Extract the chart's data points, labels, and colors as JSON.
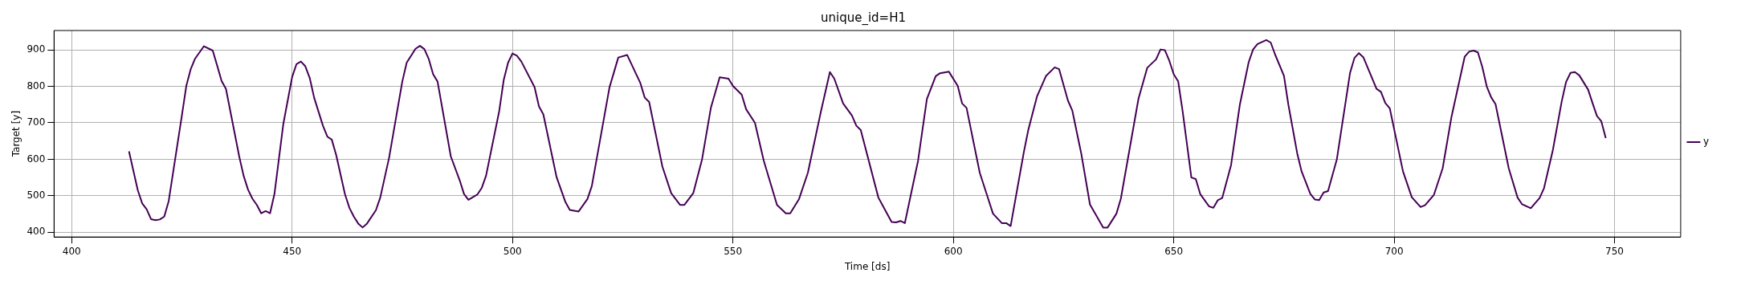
{
  "chart_data": {
    "type": "line",
    "title": "unique_id=H1",
    "xlabel": "Time [ds]",
    "ylabel": "Target [y]",
    "xlim": [
      396,
      765
    ],
    "xticks": [
      400,
      450,
      500,
      550,
      600,
      650,
      700,
      750
    ],
    "ylim": [
      387,
      953
    ],
    "yticks": [
      400,
      500,
      600,
      700,
      800,
      900
    ],
    "grid": true,
    "legend": "right",
    "marker": "none",
    "line_style": "solid",
    "series": [
      {
        "name": "y",
        "color": "#440154",
        "x": [
          413,
          415,
          416,
          417,
          418,
          419,
          420,
          421,
          422,
          425,
          426,
          427,
          428,
          430,
          432,
          433,
          434,
          435,
          438,
          439,
          440,
          441,
          442,
          443,
          444,
          445,
          446,
          448,
          450,
          451,
          452,
          453,
          454,
          455,
          457,
          458,
          459,
          460,
          462,
          463,
          464,
          465,
          466,
          467,
          469,
          470,
          472,
          475,
          476,
          478,
          479,
          480,
          481,
          482,
          483,
          486,
          488,
          489,
          490,
          492,
          493,
          494,
          497,
          498,
          499,
          500,
          501,
          502,
          505,
          506,
          507,
          510,
          511,
          512,
          513,
          515,
          517,
          518,
          522,
          524,
          526,
          529,
          530,
          531,
          534,
          536,
          538,
          539,
          541,
          543,
          545,
          547,
          549,
          550,
          552,
          553,
          555,
          557,
          560,
          562,
          563,
          565,
          567,
          570,
          572,
          573,
          575,
          577,
          578,
          579,
          583,
          586,
          587,
          588,
          589,
          592,
          594,
          596,
          597,
          599,
          601,
          602,
          603,
          606,
          609,
          611,
          612,
          613,
          616,
          617,
          619,
          621,
          623,
          624,
          626,
          627,
          629,
          631,
          634,
          635,
          637,
          638,
          642,
          644,
          646,
          647,
          648,
          649,
          650,
          651,
          652,
          654,
          655,
          656,
          658,
          659,
          660,
          661,
          663,
          665,
          667,
          668,
          669,
          671,
          672,
          673,
          675,
          676,
          678,
          679,
          681,
          682,
          683,
          684,
          685,
          687,
          690,
          691,
          692,
          693,
          696,
          697,
          698,
          699,
          702,
          704,
          706,
          707,
          709,
          711,
          713,
          716,
          717,
          718,
          719,
          720,
          721,
          722,
          723,
          726,
          728,
          729,
          731,
          733,
          734,
          736,
          738,
          739,
          740,
          741,
          742,
          744,
          745,
          746,
          747,
          748
        ],
        "values": [
          622,
          515,
          479,
          463,
          436,
          433,
          435,
          443,
          485,
          720,
          801,
          847,
          876,
          910,
          898,
          857,
          815,
          793,
          608,
          555,
          517,
          492,
          475,
          452,
          458,
          452,
          505,
          696,
          825,
          861,
          868,
          855,
          823,
          769,
          692,
          662,
          654,
          612,
          504,
          467,
          443,
          424,
          413,
          424,
          460,
          495,
          604,
          813,
          865,
          903,
          911,
          902,
          875,
          833,
          813,
          608,
          543,
          505,
          489,
          503,
          521,
          555,
          733,
          817,
          865,
          890,
          884,
          868,
          798,
          745,
          723,
          551,
          517,
          483,
          461,
          457,
          491,
          527,
          797,
          879,
          886,
          809,
          769,
          757,
          580,
          507,
          475,
          475,
          507,
          600,
          741,
          825,
          821,
          801,
          777,
          737,
          700,
          596,
          475,
          452,
          452,
          491,
          563,
          733,
          839,
          821,
          753,
          720,
          692,
          680,
          495,
          428,
          427,
          431,
          425,
          596,
          765,
          828,
          836,
          840,
          801,
          753,
          741,
          563,
          451,
          425,
          425,
          417,
          620,
          680,
          773,
          828,
          852,
          847,
          761,
          733,
          617,
          476,
          413,
          413,
          451,
          492,
          766,
          851,
          874,
          901,
          899,
          870,
          833,
          814,
          733,
          550,
          546,
          505,
          471,
          467,
          488,
          494,
          584,
          750,
          866,
          901,
          916,
          927,
          920,
          887,
          829,
          750,
          617,
          567,
          505,
          490,
          488,
          509,
          513,
          600,
          837,
          878,
          891,
          880,
          793,
          785,
          754,
          740,
          567,
          496,
          469,
          474,
          502,
          575,
          716,
          881,
          895,
          898,
          893,
          853,
          800,
          770,
          751,
          575,
          495,
          477,
          466,
          494,
          521,
          625,
          758,
          812,
          837,
          839,
          830,
          791,
          754,
          719,
          704,
          658
        ]
      }
    ]
  }
}
